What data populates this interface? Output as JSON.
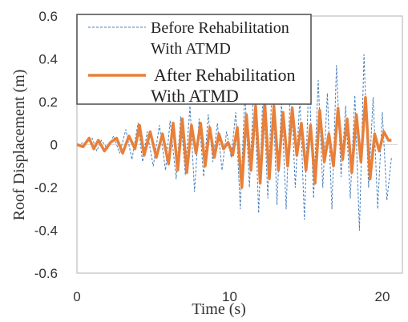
{
  "chart_data": {
    "type": "line",
    "title": "",
    "xlabel": "Time (s)",
    "ylabel": "Roof Displacement (m)",
    "xlim": [
      0,
      21
    ],
    "ylim": [
      -0.6,
      0.6
    ],
    "xticks": [
      0,
      10,
      20
    ],
    "yticks": [
      -0.6,
      -0.4,
      -0.2,
      0,
      0.2,
      0.4,
      0.6
    ],
    "ytick_labels": [
      "-0.6",
      "-0.4",
      "-0.2",
      "0",
      "0.2",
      "0.4",
      "0.6"
    ],
    "grid": false,
    "legend_position": "top-left",
    "series": [
      {
        "name": "Before Rehabilitation With  ATMD",
        "legend_lines": [
          "Before Rehabilitation",
          "With  ATMD"
        ],
        "color": "#4a7ebb",
        "style": "dashed",
        "x": [
          0,
          0.5,
          1.0,
          1.3,
          1.6,
          2.0,
          2.4,
          2.8,
          3.2,
          3.6,
          4.0,
          4.3,
          4.6,
          5.0,
          5.4,
          5.8,
          6.1,
          6.5,
          6.8,
          7.1,
          7.4,
          7.7,
          8.0,
          8.3,
          8.6,
          8.9,
          9.2,
          9.5,
          9.8,
          10.1,
          10.4,
          10.7,
          11.0,
          11.3,
          11.6,
          11.9,
          12.2,
          12.5,
          12.8,
          13.1,
          13.4,
          13.7,
          14.0,
          14.3,
          14.6,
          14.9,
          15.2,
          15.5,
          15.8,
          16.1,
          16.4,
          16.7,
          17.0,
          17.3,
          17.6,
          17.9,
          18.2,
          18.5,
          18.8,
          19.1,
          19.4,
          19.7,
          20.0,
          20.3,
          20.6
        ],
        "values": [
          0.0,
          0.01,
          0.03,
          -0.03,
          0.02,
          -0.02,
          0.04,
          -0.04,
          0.07,
          -0.07,
          0.1,
          -0.08,
          0.06,
          -0.1,
          0.09,
          -0.12,
          0.11,
          -0.16,
          0.13,
          -0.14,
          0.18,
          -0.22,
          0.12,
          -0.15,
          0.14,
          -0.08,
          0.1,
          -0.12,
          0.06,
          -0.06,
          0.15,
          -0.3,
          0.25,
          -0.2,
          0.3,
          -0.32,
          0.28,
          -0.25,
          0.32,
          -0.28,
          0.2,
          -0.3,
          0.3,
          -0.2,
          0.22,
          -0.35,
          0.34,
          -0.25,
          0.3,
          -0.2,
          0.24,
          -0.3,
          0.37,
          -0.15,
          0.18,
          -0.25,
          0.23,
          -0.4,
          0.42,
          -0.2,
          0.22,
          -0.3,
          0.15,
          -0.26,
          -0.06
        ]
      },
      {
        "name": "After Rehabilitation With  ATMD",
        "legend_lines": [
          "After Rehabilitation",
          "With  ATMD"
        ],
        "color": "#e8803a",
        "style": "solid",
        "x": [
          0,
          0.4,
          0.8,
          1.1,
          1.4,
          1.8,
          2.2,
          2.6,
          3.0,
          3.4,
          3.8,
          4.1,
          4.4,
          4.8,
          5.2,
          5.6,
          6.0,
          6.3,
          6.6,
          6.9,
          7.2,
          7.5,
          7.8,
          8.1,
          8.4,
          8.7,
          9.0,
          9.3,
          9.6,
          9.9,
          10.2,
          10.5,
          10.8,
          11.1,
          11.4,
          11.7,
          12.0,
          12.3,
          12.6,
          12.9,
          13.2,
          13.5,
          13.8,
          14.1,
          14.4,
          14.7,
          15.0,
          15.3,
          15.6,
          15.9,
          16.2,
          16.5,
          16.8,
          17.1,
          17.4,
          17.7,
          18.0,
          18.3,
          18.6,
          18.9,
          19.2,
          19.5,
          19.8,
          20.1,
          20.4,
          20.6
        ],
        "values": [
          0.0,
          -0.01,
          0.03,
          -0.02,
          0.02,
          -0.03,
          0.01,
          0.03,
          -0.04,
          0.04,
          -0.02,
          0.09,
          -0.05,
          0.06,
          -0.06,
          0.05,
          -0.09,
          0.1,
          -0.12,
          0.12,
          -0.13,
          0.09,
          -0.04,
          0.1,
          -0.1,
          0.08,
          -0.06,
          0.05,
          -0.02,
          0.01,
          -0.05,
          0.08,
          -0.2,
          0.14,
          -0.12,
          0.18,
          -0.18,
          0.2,
          -0.16,
          0.18,
          -0.12,
          0.15,
          -0.1,
          0.17,
          -0.05,
          0.1,
          -0.12,
          0.09,
          -0.18,
          0.16,
          -0.08,
          0.05,
          -0.1,
          0.17,
          -0.07,
          0.12,
          -0.13,
          0.14,
          -0.08,
          0.22,
          -0.16,
          0.05,
          -0.03,
          0.06,
          0.02,
          0.02
        ]
      }
    ]
  }
}
